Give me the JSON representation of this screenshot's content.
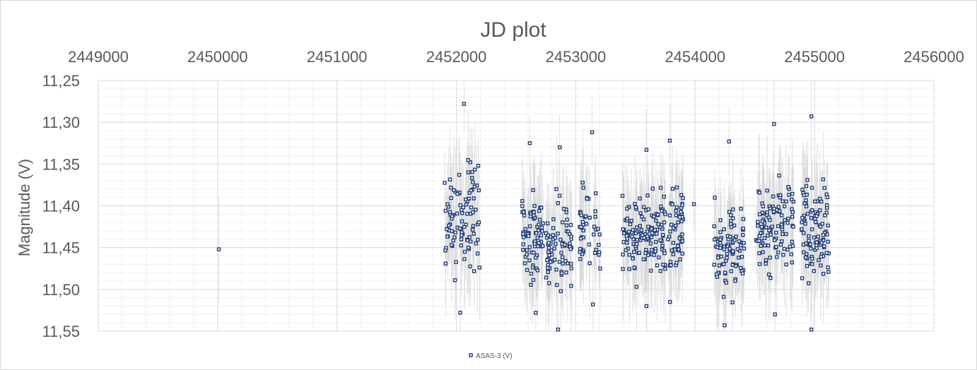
{
  "chart_data": {
    "type": "scatter",
    "title": "JD plot",
    "ylabel": "Magnitude (V)",
    "xlabel": "",
    "x_axis_position": "top",
    "y_reversed": true,
    "xlim": [
      2449000,
      2456000
    ],
    "ylim": [
      11.25,
      11.55
    ],
    "x_ticks": [
      2449000,
      2450000,
      2451000,
      2452000,
      2453000,
      2454000,
      2455000,
      2456000
    ],
    "x_tick_labels": [
      "2449000",
      "2450000",
      "2451000",
      "2452000",
      "2453000",
      "2454000",
      "2455000",
      "2456000"
    ],
    "y_ticks": [
      11.25,
      11.3,
      11.35,
      11.4,
      11.45,
      11.5,
      11.55
    ],
    "y_tick_labels": [
      "11,25",
      "11,30",
      "11,35",
      "11,40",
      "11,45",
      "11,50",
      "11,55"
    ],
    "grid": true,
    "legend_position": "bottom-center",
    "marker_color": "#1f3c78",
    "errorbar_color": "#d9d9d9",
    "series": [
      {
        "name": "ASAS-3 (V)",
        "clusters": [
          {
            "center": 2452050,
            "halfwidth": 150,
            "count": 95,
            "ymin": 11.278,
            "ymax": 11.528
          },
          {
            "center": 2452640,
            "halfwidth": 90,
            "count": 70,
            "ymin": 11.325,
            "ymax": 11.528
          },
          {
            "center": 2452860,
            "halfwidth": 110,
            "count": 75,
            "ymin": 11.33,
            "ymax": 11.548
          },
          {
            "center": 2453120,
            "halfwidth": 90,
            "count": 45,
            "ymin": 11.312,
            "ymax": 11.518
          },
          {
            "center": 2453560,
            "halfwidth": 170,
            "count": 120,
            "ymin": 11.333,
            "ymax": 11.52
          },
          {
            "center": 2453810,
            "halfwidth": 90,
            "count": 65,
            "ymin": 11.322,
            "ymax": 11.515
          },
          {
            "center": 2454280,
            "halfwidth": 130,
            "count": 90,
            "ymin": 11.323,
            "ymax": 11.543
          },
          {
            "center": 2454670,
            "halfwidth": 160,
            "count": 110,
            "ymin": 11.302,
            "ymax": 11.53
          },
          {
            "center": 2455000,
            "halfwidth": 120,
            "count": 100,
            "ymin": 11.293,
            "ymax": 11.548
          }
        ],
        "extra_points": [
          {
            "x": 2450010,
            "y": 11.452
          },
          {
            "x": 2453990,
            "y": 11.398
          }
        ]
      }
    ]
  }
}
